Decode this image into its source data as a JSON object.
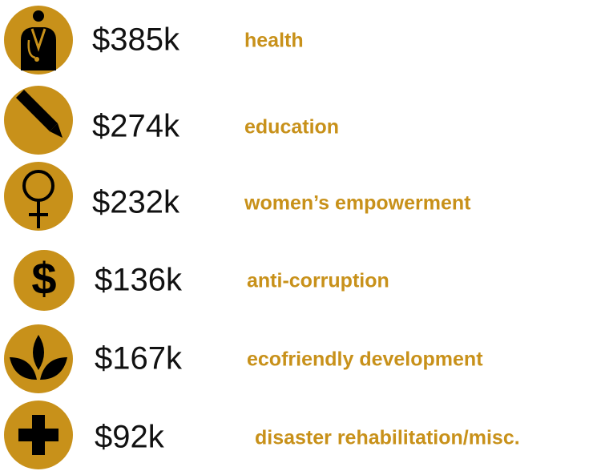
{
  "items": [
    {
      "amount": "$385k",
      "label": "health"
    },
    {
      "amount": "$274k",
      "label": "education"
    },
    {
      "amount": "$232k",
      "label": "women’s empowerment"
    },
    {
      "amount": "$136k",
      "label": "anti-corruption"
    },
    {
      "amount": "$167k",
      "label": "ecofriendly development"
    },
    {
      "amount": "$92k",
      "label": "disaster rehabilitation/misc."
    }
  ]
}
